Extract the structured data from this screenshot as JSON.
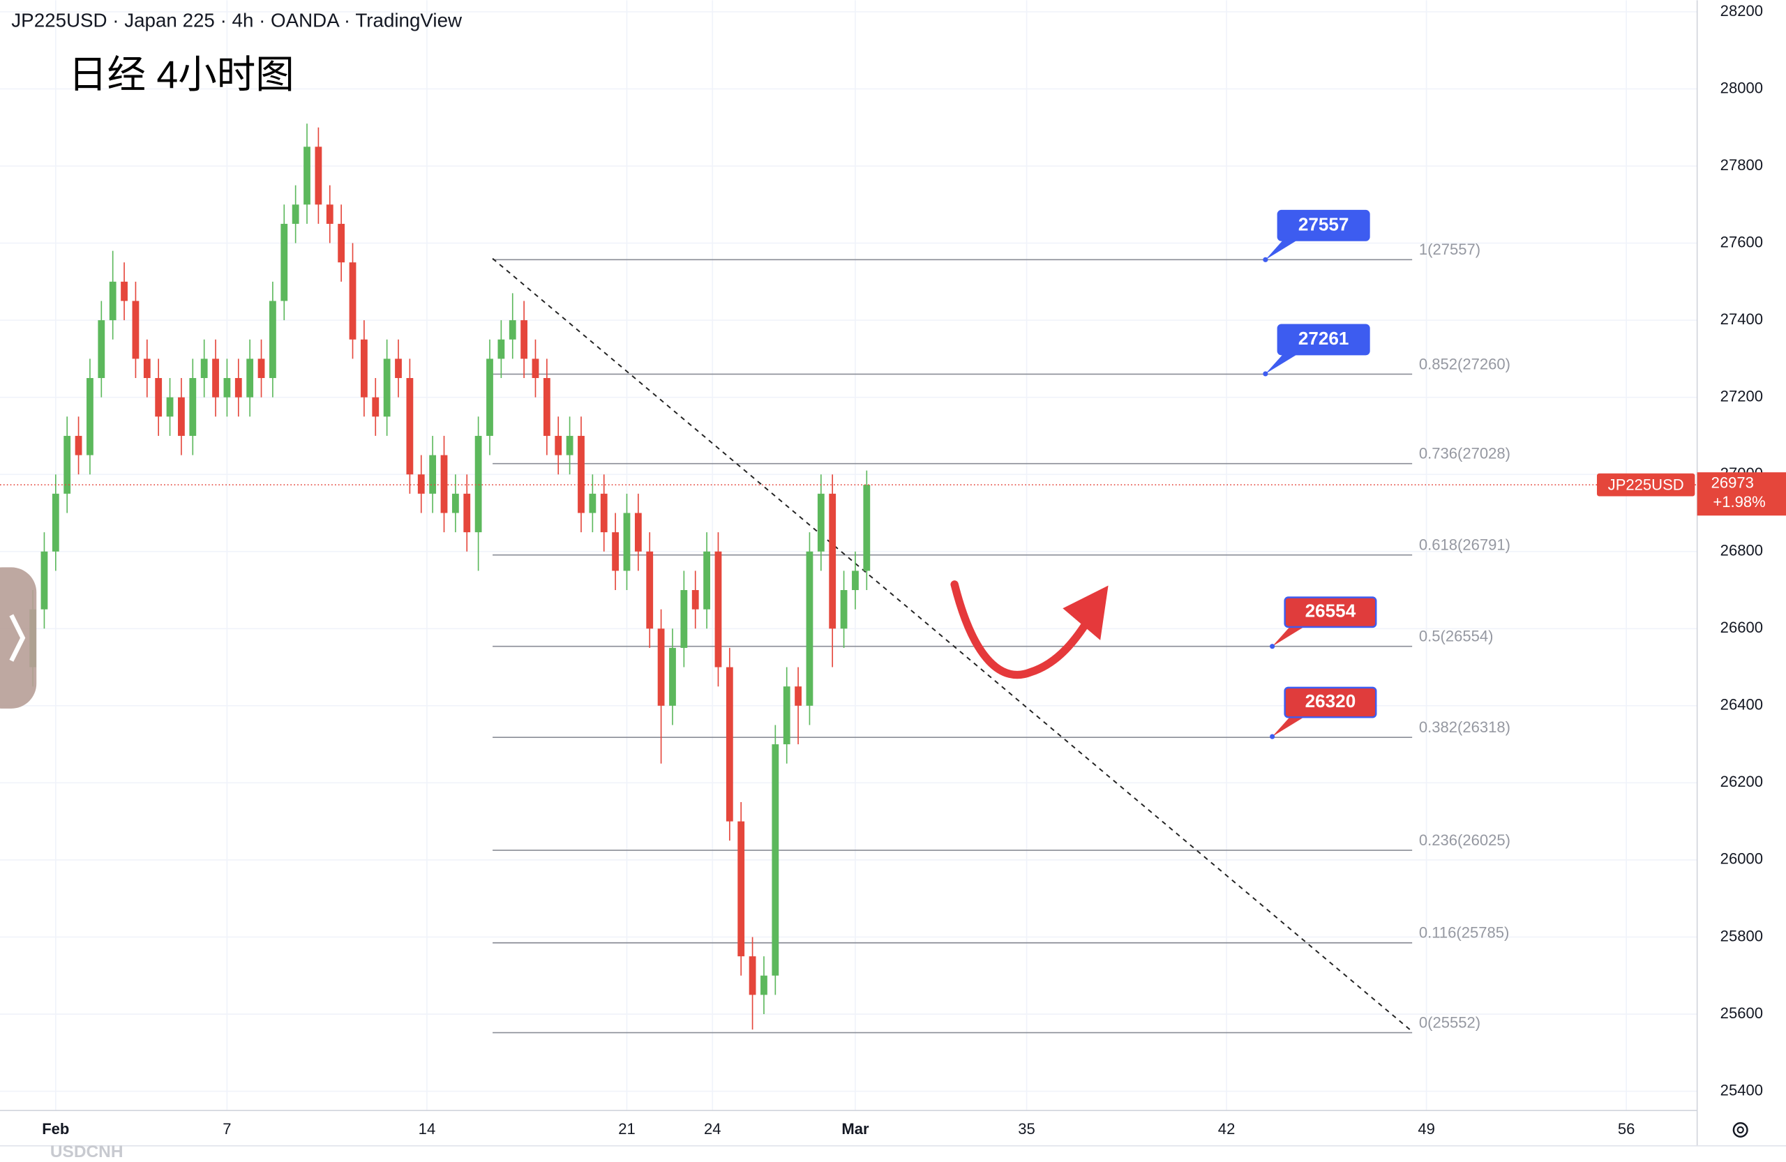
{
  "chart_data": {
    "type": "candlestick",
    "title": "JP225USD · Japan 225 · 4h · OANDA · TradingView",
    "annotation": "日经 4小时图",
    "watermark": "USDCNH",
    "x": [
      0.2,
      0.6,
      1.0,
      1.4,
      1.8,
      2.2,
      2.6,
      3.0,
      3.4,
      3.8,
      4.2,
      4.6,
      5.0,
      5.4,
      5.8,
      6.2,
      6.6,
      7.0,
      7.4,
      7.8,
      8.2,
      8.6,
      9.0,
      9.4,
      9.8,
      10.2,
      10.6,
      11.0,
      11.4,
      11.8,
      12.2,
      12.6,
      13.0,
      13.4,
      13.8,
      14.2,
      14.6,
      15.0,
      15.4,
      15.8,
      16.2,
      16.6,
      17.0,
      17.4,
      17.8,
      18.2,
      18.6,
      19.0,
      19.4,
      19.8,
      20.2,
      20.6,
      21.0,
      21.4,
      21.8,
      22.2,
      22.6,
      23.0,
      23.4,
      23.8,
      24.2,
      24.6,
      25.0,
      25.4,
      25.8,
      26.2,
      26.6,
      27.0,
      27.4,
      27.8,
      28.2,
      28.6,
      29.0,
      29.4
    ],
    "open": [
      26500,
      26650,
      26800,
      26950,
      27100,
      27050,
      27250,
      27400,
      27500,
      27450,
      27300,
      27250,
      27150,
      27200,
      27100,
      27250,
      27300,
      27200,
      27250,
      27200,
      27300,
      27250,
      27450,
      27650,
      27700,
      27850,
      27700,
      27650,
      27550,
      27350,
      27200,
      27150,
      27300,
      27250,
      27000,
      26950,
      27050,
      26900,
      26950,
      26850,
      27100,
      27300,
      27350,
      27400,
      27300,
      27250,
      27100,
      27050,
      27100,
      26900,
      26950,
      26850,
      26750,
      26900,
      26800,
      26600,
      26400,
      26550,
      26700,
      26650,
      26800,
      26500,
      26100,
      25750,
      25650,
      25700,
      26300,
      26450,
      26400,
      26800,
      26950,
      26600,
      26700,
      26750
    ],
    "high": [
      26700,
      26850,
      27000,
      27150,
      27150,
      27300,
      27450,
      27580,
      27550,
      27500,
      27350,
      27300,
      27250,
      27250,
      27300,
      27350,
      27350,
      27300,
      27300,
      27350,
      27350,
      27500,
      27700,
      27750,
      27910,
      27900,
      27750,
      27700,
      27600,
      27400,
      27250,
      27350,
      27350,
      27300,
      27050,
      27100,
      27100,
      27000,
      27000,
      27150,
      27350,
      27400,
      27470,
      27450,
      27350,
      27300,
      27150,
      27150,
      27150,
      27000,
      27000,
      26900,
      26950,
      26950,
      26850,
      26650,
      26600,
      26750,
      26750,
      26850,
      26850,
      26550,
      26150,
      25800,
      25750,
      26350,
      26500,
      26500,
      26850,
      27000,
      27000,
      26750,
      26800,
      27010
    ],
    "low": [
      26450,
      26600,
      26750,
      26900,
      27000,
      27000,
      27200,
      27350,
      27400,
      27250,
      27200,
      27100,
      27100,
      27050,
      27050,
      27200,
      27150,
      27150,
      27150,
      27150,
      27200,
      27200,
      27400,
      27600,
      27650,
      27650,
      27600,
      27500,
      27300,
      27150,
      27100,
      27100,
      27200,
      26950,
      26900,
      26900,
      26850,
      26850,
      26800,
      26750,
      27050,
      27250,
      27300,
      27250,
      27200,
      27050,
      27000,
      27000,
      26850,
      26850,
      26800,
      26700,
      26700,
      26750,
      26550,
      26250,
      26350,
      26500,
      26600,
      26600,
      26450,
      26050,
      25700,
      25560,
      25600,
      25650,
      26250,
      26300,
      26350,
      26750,
      26500,
      26550,
      26650,
      26700
    ],
    "close": [
      26650,
      26800,
      26950,
      27100,
      27050,
      27250,
      27400,
      27500,
      27450,
      27300,
      27250,
      27150,
      27200,
      27100,
      27250,
      27300,
      27200,
      27250,
      27200,
      27300,
      27250,
      27450,
      27650,
      27700,
      27850,
      27700,
      27650,
      27550,
      27350,
      27200,
      27150,
      27300,
      27250,
      27000,
      26950,
      27050,
      26900,
      26950,
      26850,
      27100,
      27300,
      27350,
      27400,
      27300,
      27250,
      27100,
      27050,
      27100,
      26900,
      26950,
      26850,
      26750,
      26900,
      26800,
      26600,
      26400,
      26550,
      26700,
      26650,
      26800,
      26500,
      26100,
      25750,
      25650,
      25700,
      26300,
      26450,
      26400,
      26800,
      26950,
      26600,
      26700,
      26750,
      26973
    ],
    "up_color": "#5cb85c",
    "down_color": "#e5463b",
    "xlim": [
      -0.95,
      58.48
    ],
    "xticks": [
      {
        "value": 1,
        "label": "Feb"
      },
      7,
      14,
      21,
      24,
      {
        "value": 29,
        "label": "Mar"
      },
      35,
      42,
      49,
      56
    ],
    "ylim": [
      25350,
      28230
    ],
    "yticks": [
      25400,
      25600,
      25800,
      26000,
      26200,
      26400,
      26600,
      26800,
      27000,
      27200,
      27400,
      27600,
      27800,
      28000,
      28200
    ],
    "grid": true,
    "fib_x": [
      16.3,
      48.5
    ],
    "fib_levels": [
      {
        "value": 27557,
        "label": "1(27557)"
      },
      {
        "value": 27260,
        "label": "0.852(27260)"
      },
      {
        "value": 27028,
        "label": "0.736(27028)"
      },
      {
        "value": 26791,
        "label": "0.618(26791)"
      },
      {
        "value": 26554,
        "label": "0.5(26554)"
      },
      {
        "value": 26318,
        "label": "0.382(26318)"
      },
      {
        "value": 26025,
        "label": "0.236(26025)"
      },
      {
        "value": 25785,
        "label": "0.116(25785)"
      },
      {
        "value": 25552,
        "label": "0(25552)"
      }
    ],
    "trendline": {
      "x": [
        16.3,
        48.5
      ],
      "y": [
        27560,
        25555
      ]
    },
    "callouts": [
      {
        "value": 27557,
        "color": "#3d5cf0"
      },
      {
        "value": 27261,
        "color": "#3d5cf0"
      },
      {
        "value": 26554,
        "color": "#e03c3c"
      },
      {
        "value": 26320,
        "color": "#e03c3c"
      }
    ],
    "symbol": "JP225USD",
    "last_price": 26973,
    "change_label": "+1.98%",
    "price_color": "#e5463b"
  }
}
